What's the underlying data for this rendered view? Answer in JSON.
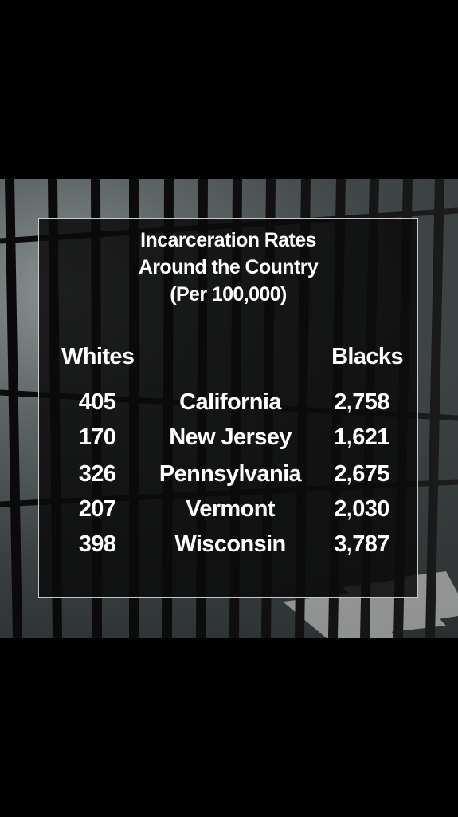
{
  "chart_data": {
    "type": "table",
    "title": [
      "Incarceration Rates",
      "Around the Country",
      "(Per 100,000)"
    ],
    "columns": [
      "Whites",
      "",
      "Blacks"
    ],
    "rows": [
      {
        "whites": "405",
        "state": "California",
        "blacks": "2,758"
      },
      {
        "whites": "170",
        "state": "New Jersey",
        "blacks": "1,621"
      },
      {
        "whites": "326",
        "state": "Pennsylvania",
        "blacks": "2,675"
      },
      {
        "whites": "207",
        "state": "Vermont",
        "blacks": "2,030"
      },
      {
        "whites": "398",
        "state": "Wisconsin",
        "blacks": "3,787"
      }
    ]
  },
  "colors": {
    "background": "#000000",
    "panel": "#0a0a0a",
    "text": "#ffffff",
    "panel_border": "#c9c9c9"
  }
}
